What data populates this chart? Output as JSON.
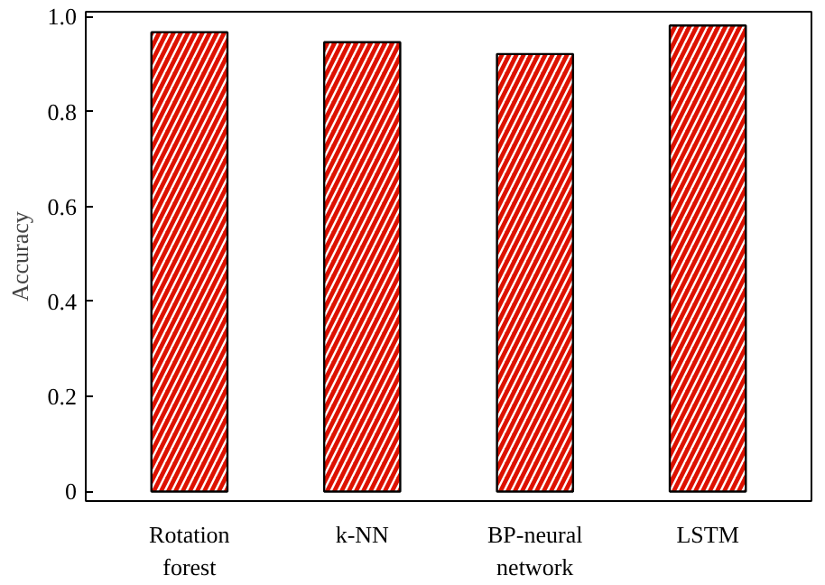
{
  "chart_data": {
    "type": "bar",
    "ylabel": "Accuracy",
    "categories": [
      "Rotation\nforest",
      "k-NN",
      "BP-neural\nnetwork",
      "LSTM"
    ],
    "values": [
      0.967,
      0.946,
      0.921,
      0.981
    ],
    "color": "#dd1100",
    "ylim": [
      -0.02,
      1.01
    ],
    "yticks": [
      0,
      0.2,
      0.4,
      0.6,
      0.8,
      {
        "value": 1.0,
        "label": "1.0"
      }
    ],
    "grid": false
  }
}
